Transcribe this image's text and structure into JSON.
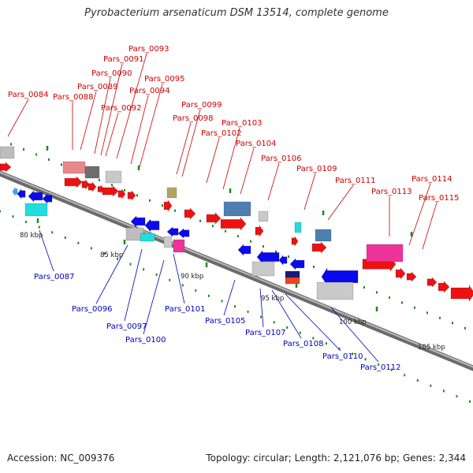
{
  "title": "Pyrobacterium arsenaticum DSM 13514, complete genome",
  "footer": {
    "accession": "Accession: NC_009376",
    "summary": "Topology: circular; Length: 2,121,076 bp; Genes: 2,344"
  },
  "colors": {
    "forward_labels": "#cc0000",
    "reverse_labels": "#0000bb",
    "backbone": "#7a7a7a",
    "tick": "#1a8a1a",
    "ruler_text": "#222222"
  },
  "ruler_labels": [
    "80 kbp",
    "85 kbp",
    "90 kbp",
    "95 kbp",
    "100 kbp",
    "105 kbp"
  ],
  "forward_genes": [
    "Pars_0084",
    "Pars_0088",
    "Pars_0089",
    "Pars_0090",
    "Pars_0091",
    "Pars_0092",
    "Pars_0093",
    "Pars_0094",
    "Pars_0095",
    "Pars_0098",
    "Pars_0099",
    "Pars_0102",
    "Pars_0103",
    "Pars_0104",
    "Pars_0106",
    "Pars_0109",
    "Pars_0111",
    "Pars_0113",
    "Pars_0114",
    "Pars_0115"
  ],
  "reverse_genes": [
    "Pars_0087",
    "Pars_0096",
    "Pars_0097",
    "Pars_0100",
    "Pars_0101",
    "Pars_0105",
    "Pars_0107",
    "Pars_0108",
    "Pars_0110",
    "Pars_0112"
  ]
}
